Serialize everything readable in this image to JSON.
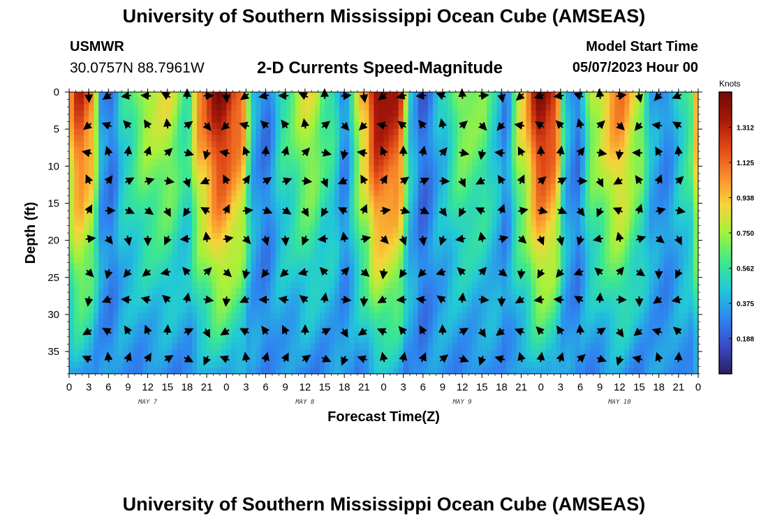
{
  "header": {
    "title": "University of Southern Mississippi Ocean Cube (AMSEAS)",
    "station_id": "USMWR",
    "station_coords": "30.0757N  88.7961W",
    "product_title": "2-D Currents Speed-Magnitude",
    "model_start_label": "Model Start Time",
    "model_start_value": "05/07/2023 Hour 00"
  },
  "footer": {
    "title": "University of Southern Mississippi Ocean Cube (AMSEAS)"
  },
  "chart_data": {
    "type": "heatmap",
    "title": "2-D Currents Speed-Magnitude",
    "xlabel": "Forecast Time(Z)",
    "ylabel": "Depth (ft)",
    "x_range_hours": [
      0,
      96
    ],
    "y_range_ft": [
      0,
      38
    ],
    "x_ticks": [
      "0",
      "3",
      "6",
      "9",
      "12",
      "15",
      "18",
      "21",
      "0",
      "3",
      "6",
      "9",
      "12",
      "15",
      "18",
      "21",
      "0",
      "3",
      "6",
      "9",
      "12",
      "15",
      "18",
      "21",
      "0",
      "3",
      "6",
      "9",
      "12",
      "15",
      "18",
      "21",
      "0"
    ],
    "x_tick_hours": [
      0,
      3,
      6,
      9,
      12,
      15,
      18,
      21,
      24,
      27,
      30,
      33,
      36,
      39,
      42,
      45,
      48,
      51,
      54,
      57,
      60,
      63,
      66,
      69,
      72,
      75,
      78,
      81,
      84,
      87,
      90,
      93,
      96
    ],
    "y_ticks": [
      "0",
      "5",
      "10",
      "15",
      "20",
      "25",
      "30",
      "35"
    ],
    "y_tick_values": [
      0,
      5,
      10,
      15,
      20,
      25,
      30,
      35
    ],
    "date_labels": [
      {
        "label": "MAY 7",
        "hour": 12
      },
      {
        "label": "MAY 8",
        "hour": 36
      },
      {
        "label": "MAY 9",
        "hour": 60
      },
      {
        "label": "MAY 10",
        "hour": 84
      }
    ],
    "colorbar": {
      "unit": "Knots",
      "range": [
        0,
        1.5
      ],
      "tick_labels": [
        "1.312",
        "1.125",
        "0.938",
        "0.750",
        "0.562",
        "0.375",
        "0.188"
      ],
      "tick_values": [
        1.312,
        1.125,
        0.938,
        0.75,
        0.562,
        0.375,
        0.188
      ],
      "colormap": [
        "#2a1e5e",
        "#3b4bc8",
        "#2e87f0",
        "#22c9d6",
        "#3fe98b",
        "#a4f23b",
        "#f7d43a",
        "#f98d2b",
        "#e04a17",
        "#a8180a",
        "#6e0c05"
      ]
    },
    "surface_speed_profile_knots": [
      {
        "hour": 0,
        "speed": 1.0
      },
      {
        "hour": 1.5,
        "speed": 1.3
      },
      {
        "hour": 3.5,
        "speed": 1.1
      },
      {
        "hour": 5,
        "speed": 0.35
      },
      {
        "hour": 6.5,
        "speed": 0.25
      },
      {
        "hour": 8.5,
        "speed": 0.55
      },
      {
        "hour": 12,
        "speed": 0.8
      },
      {
        "hour": 15,
        "speed": 0.85
      },
      {
        "hour": 18,
        "speed": 0.6
      },
      {
        "hour": 20,
        "speed": 1.1
      },
      {
        "hour": 23,
        "speed": 1.45
      },
      {
        "hour": 26,
        "speed": 1.2
      },
      {
        "hour": 28.5,
        "speed": 0.35
      },
      {
        "hour": 30,
        "speed": 0.25
      },
      {
        "hour": 33,
        "speed": 0.6
      },
      {
        "hour": 36.5,
        "speed": 0.85
      },
      {
        "hour": 40,
        "speed": 0.6
      },
      {
        "hour": 42,
        "speed": 0.3
      },
      {
        "hour": 45,
        "speed": 1.0
      },
      {
        "hour": 47,
        "speed": 1.45
      },
      {
        "hour": 50,
        "speed": 1.35
      },
      {
        "hour": 52.5,
        "speed": 0.4
      },
      {
        "hour": 54,
        "speed": 0.2
      },
      {
        "hour": 57,
        "speed": 0.45
      },
      {
        "hour": 60,
        "speed": 0.75
      },
      {
        "hour": 63,
        "speed": 0.7
      },
      {
        "hour": 65,
        "speed": 0.5
      },
      {
        "hour": 66.5,
        "speed": 0.3
      },
      {
        "hour": 69,
        "speed": 0.9
      },
      {
        "hour": 72,
        "speed": 1.45
      },
      {
        "hour": 74,
        "speed": 1.3
      },
      {
        "hour": 76,
        "speed": 0.4
      },
      {
        "hour": 77.5,
        "speed": 0.25
      },
      {
        "hour": 80,
        "speed": 0.8
      },
      {
        "hour": 84,
        "speed": 1.1
      },
      {
        "hour": 87,
        "speed": 0.8
      },
      {
        "hour": 89,
        "speed": 0.4
      },
      {
        "hour": 91,
        "speed": 0.3
      },
      {
        "hour": 94.5,
        "speed": 0.6
      },
      {
        "hour": 96,
        "speed": 1.1
      }
    ],
    "vector_rows_depth_ft": [
      0.5,
      4.5,
      8.2,
      12.0,
      16.0,
      19.8,
      24.3,
      28.0,
      32.3,
      36.0
    ],
    "vector_columns_hour_step": 3
  }
}
